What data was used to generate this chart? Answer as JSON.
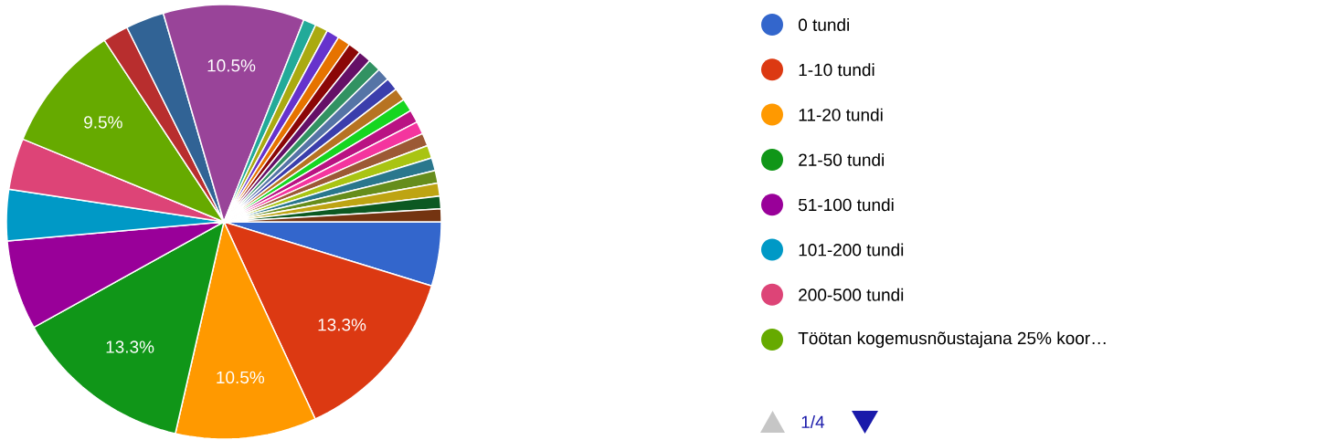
{
  "chart_data": {
    "type": "pie",
    "categories": [
      "0 tundi",
      "1-10 tundi",
      "11-20 tundi",
      "21-50 tundi",
      "51-100 tundi",
      "101-200 tundi",
      "200-500 tundi",
      "Töötan kogemusnõustajana 25% koor…",
      null,
      null,
      null,
      null,
      null,
      null,
      null,
      null,
      null,
      null,
      null,
      null,
      null,
      null,
      null,
      null,
      null,
      null,
      null,
      null,
      null,
      null,
      null
    ],
    "values": [
      4.76,
      13.33,
      10.48,
      13.33,
      6.67,
      3.81,
      3.81,
      9.52,
      1.9,
      2.86,
      10.48,
      0.95,
      0.95,
      0.95,
      0.95,
      0.95,
      0.95,
      0.95,
      0.95,
      0.95,
      0.95,
      0.95,
      0.95,
      0.95,
      0.95,
      0.95,
      0.95,
      0.95,
      0.95,
      0.95,
      0.95
    ],
    "colors": [
      "#3366cc",
      "#dc3912",
      "#ff9900",
      "#109618",
      "#990099",
      "#0099c6",
      "#dd4477",
      "#66aa00",
      "#b82e2e",
      "#316395",
      "#994499",
      "#22aa99",
      "#aaaa11",
      "#6633cc",
      "#e67300",
      "#8b0707",
      "#651067",
      "#329262",
      "#5574a6",
      "#3b3eac",
      "#b77322",
      "#16d620",
      "#b91383",
      "#f4359e",
      "#9c5935",
      "#a9c413",
      "#2a778d",
      "#668d1c",
      "#bea413",
      "#0c5922",
      "#743411"
    ],
    "value_labels": [
      null,
      "13.3%",
      "10.5%",
      "13.3%",
      null,
      null,
      null,
      "9.5%",
      null,
      null,
      "10.5%",
      null,
      null,
      null,
      null,
      null,
      null,
      null,
      null,
      null,
      null,
      null,
      null,
      null,
      null,
      null,
      null,
      null,
      null,
      null,
      null
    ],
    "legend": "right",
    "annotations": [
      "1/4"
    ]
  }
}
